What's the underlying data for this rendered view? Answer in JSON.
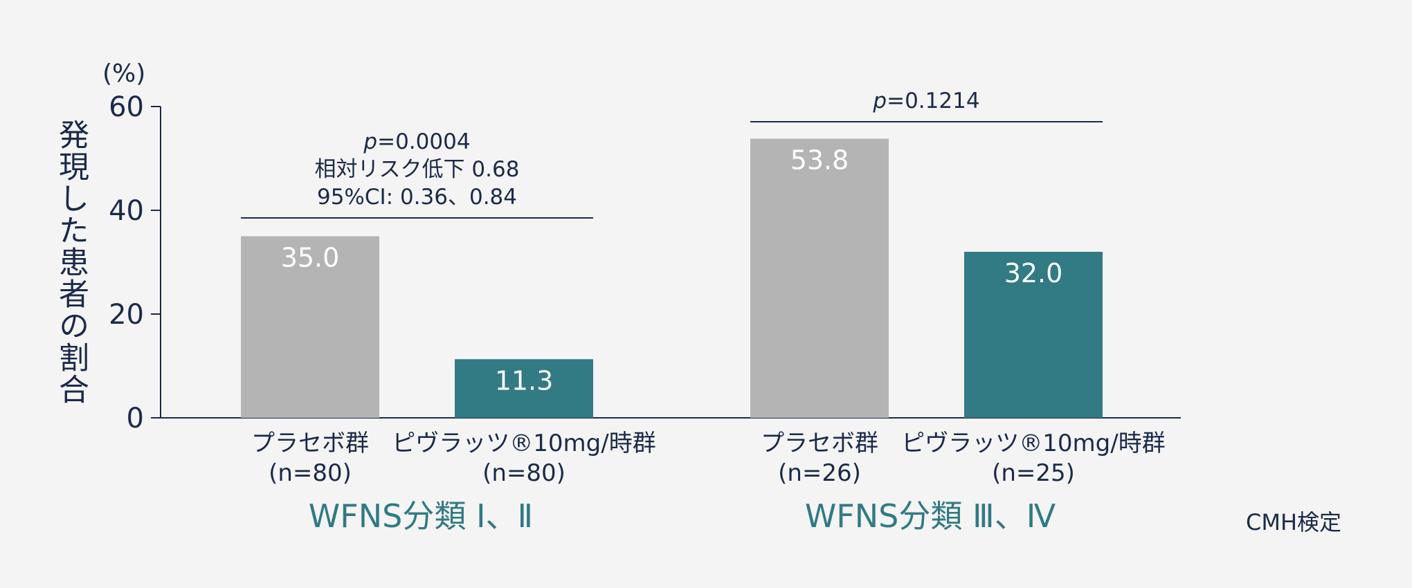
{
  "chart_data": {
    "type": "bar",
    "ylabel": "発現した患者の割合",
    "unit": "(%)",
    "ylim": [
      0,
      60
    ],
    "yticks": [
      0,
      20,
      40,
      60
    ],
    "colors": {
      "placebo": "#b4b4b4",
      "drug": "#327a84",
      "axis": "#1b2a4a",
      "group_text": "#327a84"
    },
    "groups": [
      {
        "name": "WFNS分類 Ⅰ、Ⅱ",
        "bars": [
          {
            "label": "プラセボ群",
            "n": "(n=80)",
            "value": 35.0,
            "value_text": "35.0",
            "series": "placebo"
          },
          {
            "label": "ピヴラッツ®10mg/時群",
            "n": "(n=80)",
            "value": 11.3,
            "value_text": "11.3",
            "series": "drug"
          }
        ],
        "annotation": [
          "p=0.0004",
          "相対リスク低下 0.68",
          "95%CI: 0.36、0.84"
        ]
      },
      {
        "name": "WFNS分類 Ⅲ、Ⅳ",
        "bars": [
          {
            "label": "プラセボ群",
            "n": "(n=26)",
            "value": 53.8,
            "value_text": "53.8",
            "series": "placebo"
          },
          {
            "label": "ピヴラッツ®10mg/時群",
            "n": "(n=25)",
            "value": 32.0,
            "value_text": "32.0",
            "series": "drug"
          }
        ],
        "annotation": [
          "p=0.1214"
        ]
      }
    ],
    "footnote": "CMH検定"
  }
}
